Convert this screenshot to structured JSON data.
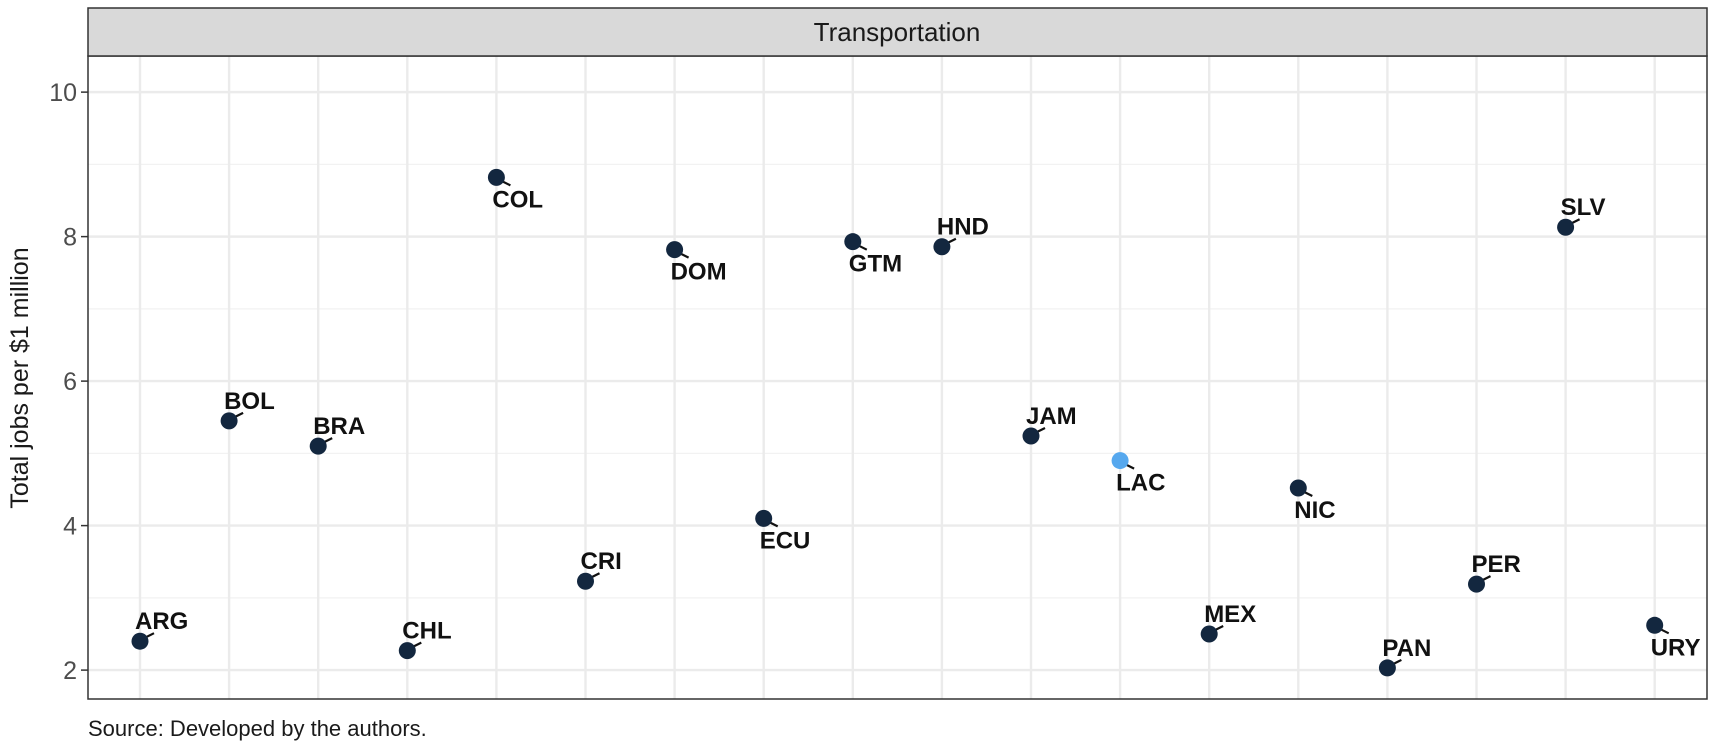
{
  "chart_data": {
    "type": "scatter",
    "facet_title": "Transportation",
    "ylabel": "Total jobs per $1 million",
    "xlabel": "",
    "ylim": [
      1.6,
      10.5
    ],
    "y_ticks": [
      2,
      4,
      6,
      8,
      10
    ],
    "grid": true,
    "legend": "none",
    "colors": {
      "default": "#13273f",
      "highlight": "#56a8ee",
      "grid": "#ebebeb",
      "strip": "#d9d9d9"
    },
    "points": [
      {
        "label": "ARG",
        "y": 2.4,
        "highlight": false,
        "label_pos": "upper-right"
      },
      {
        "label": "BOL",
        "y": 5.45,
        "highlight": false,
        "label_pos": "upper-right"
      },
      {
        "label": "BRA",
        "y": 5.1,
        "highlight": false,
        "label_pos": "upper-right"
      },
      {
        "label": "CHL",
        "y": 2.27,
        "highlight": false,
        "label_pos": "upper-right"
      },
      {
        "label": "COL",
        "y": 8.82,
        "highlight": false,
        "label_pos": "lower-right"
      },
      {
        "label": "CRI",
        "y": 3.23,
        "highlight": false,
        "label_pos": "upper-right"
      },
      {
        "label": "DOM",
        "y": 7.82,
        "highlight": false,
        "label_pos": "lower-right"
      },
      {
        "label": "ECU",
        "y": 4.1,
        "highlight": false,
        "label_pos": "lower-right"
      },
      {
        "label": "GTM",
        "y": 7.93,
        "highlight": false,
        "label_pos": "lower-right"
      },
      {
        "label": "HND",
        "y": 7.86,
        "highlight": false,
        "label_pos": "upper-right"
      },
      {
        "label": "JAM",
        "y": 5.24,
        "highlight": false,
        "label_pos": "upper-right"
      },
      {
        "label": "LAC",
        "y": 4.9,
        "highlight": true,
        "label_pos": "lower-right"
      },
      {
        "label": "MEX",
        "y": 2.5,
        "highlight": false,
        "label_pos": "upper-right"
      },
      {
        "label": "NIC",
        "y": 4.52,
        "highlight": false,
        "label_pos": "lower-right"
      },
      {
        "label": "PAN",
        "y": 2.03,
        "highlight": false,
        "label_pos": "upper-right"
      },
      {
        "label": "PER",
        "y": 3.19,
        "highlight": false,
        "label_pos": "upper-right"
      },
      {
        "label": "SLV",
        "y": 8.13,
        "highlight": false,
        "label_pos": "upper-right"
      },
      {
        "label": "URY",
        "y": 2.62,
        "highlight": false,
        "label_pos": "lower-right"
      }
    ]
  },
  "caption": "Source: Developed by the authors."
}
